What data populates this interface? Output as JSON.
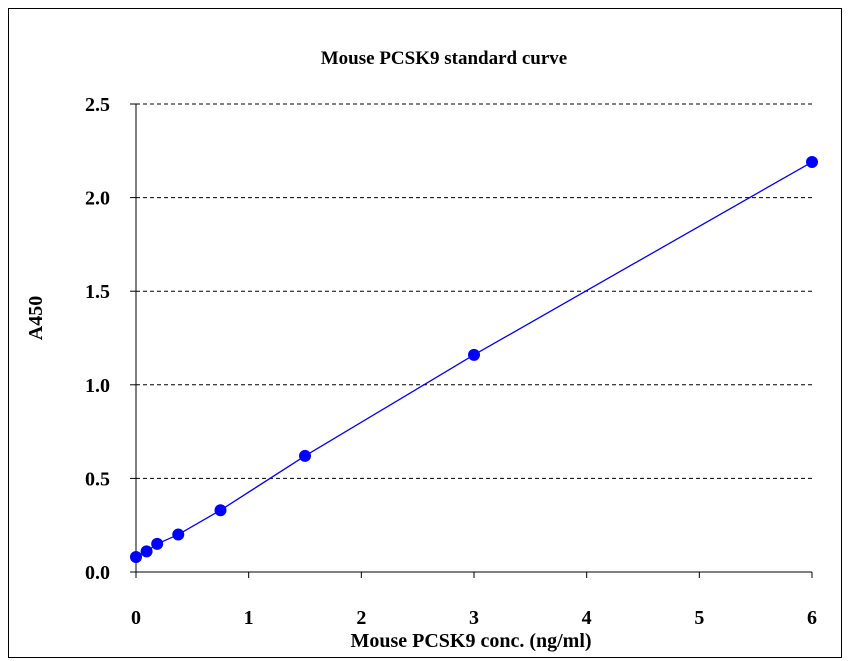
{
  "chart_data": {
    "type": "scatter",
    "title": "Mouse PCSK9 standard curve",
    "xlabel": "Mouse PCSK9 conc. (ng/ml)",
    "ylabel": "A450",
    "xlim": [
      0,
      6
    ],
    "ylim": [
      0,
      2.5
    ],
    "xticks": [
      "0",
      "1",
      "2",
      "3",
      "4",
      "5",
      "6"
    ],
    "yticks": [
      "0.0",
      "0.5",
      "1.0",
      "1.5",
      "2.0",
      "2.5"
    ],
    "grid": "horizontal-dashed",
    "legend": "none",
    "colors": {
      "series": "#0000ff",
      "axis": "#000000"
    },
    "series": [
      {
        "x": [
          0,
          0.094,
          0.188,
          0.375,
          0.75,
          1.5,
          3,
          6
        ],
        "y": [
          0.08,
          0.11,
          0.15,
          0.2,
          0.33,
          0.62,
          1.16,
          2.19
        ]
      }
    ]
  }
}
